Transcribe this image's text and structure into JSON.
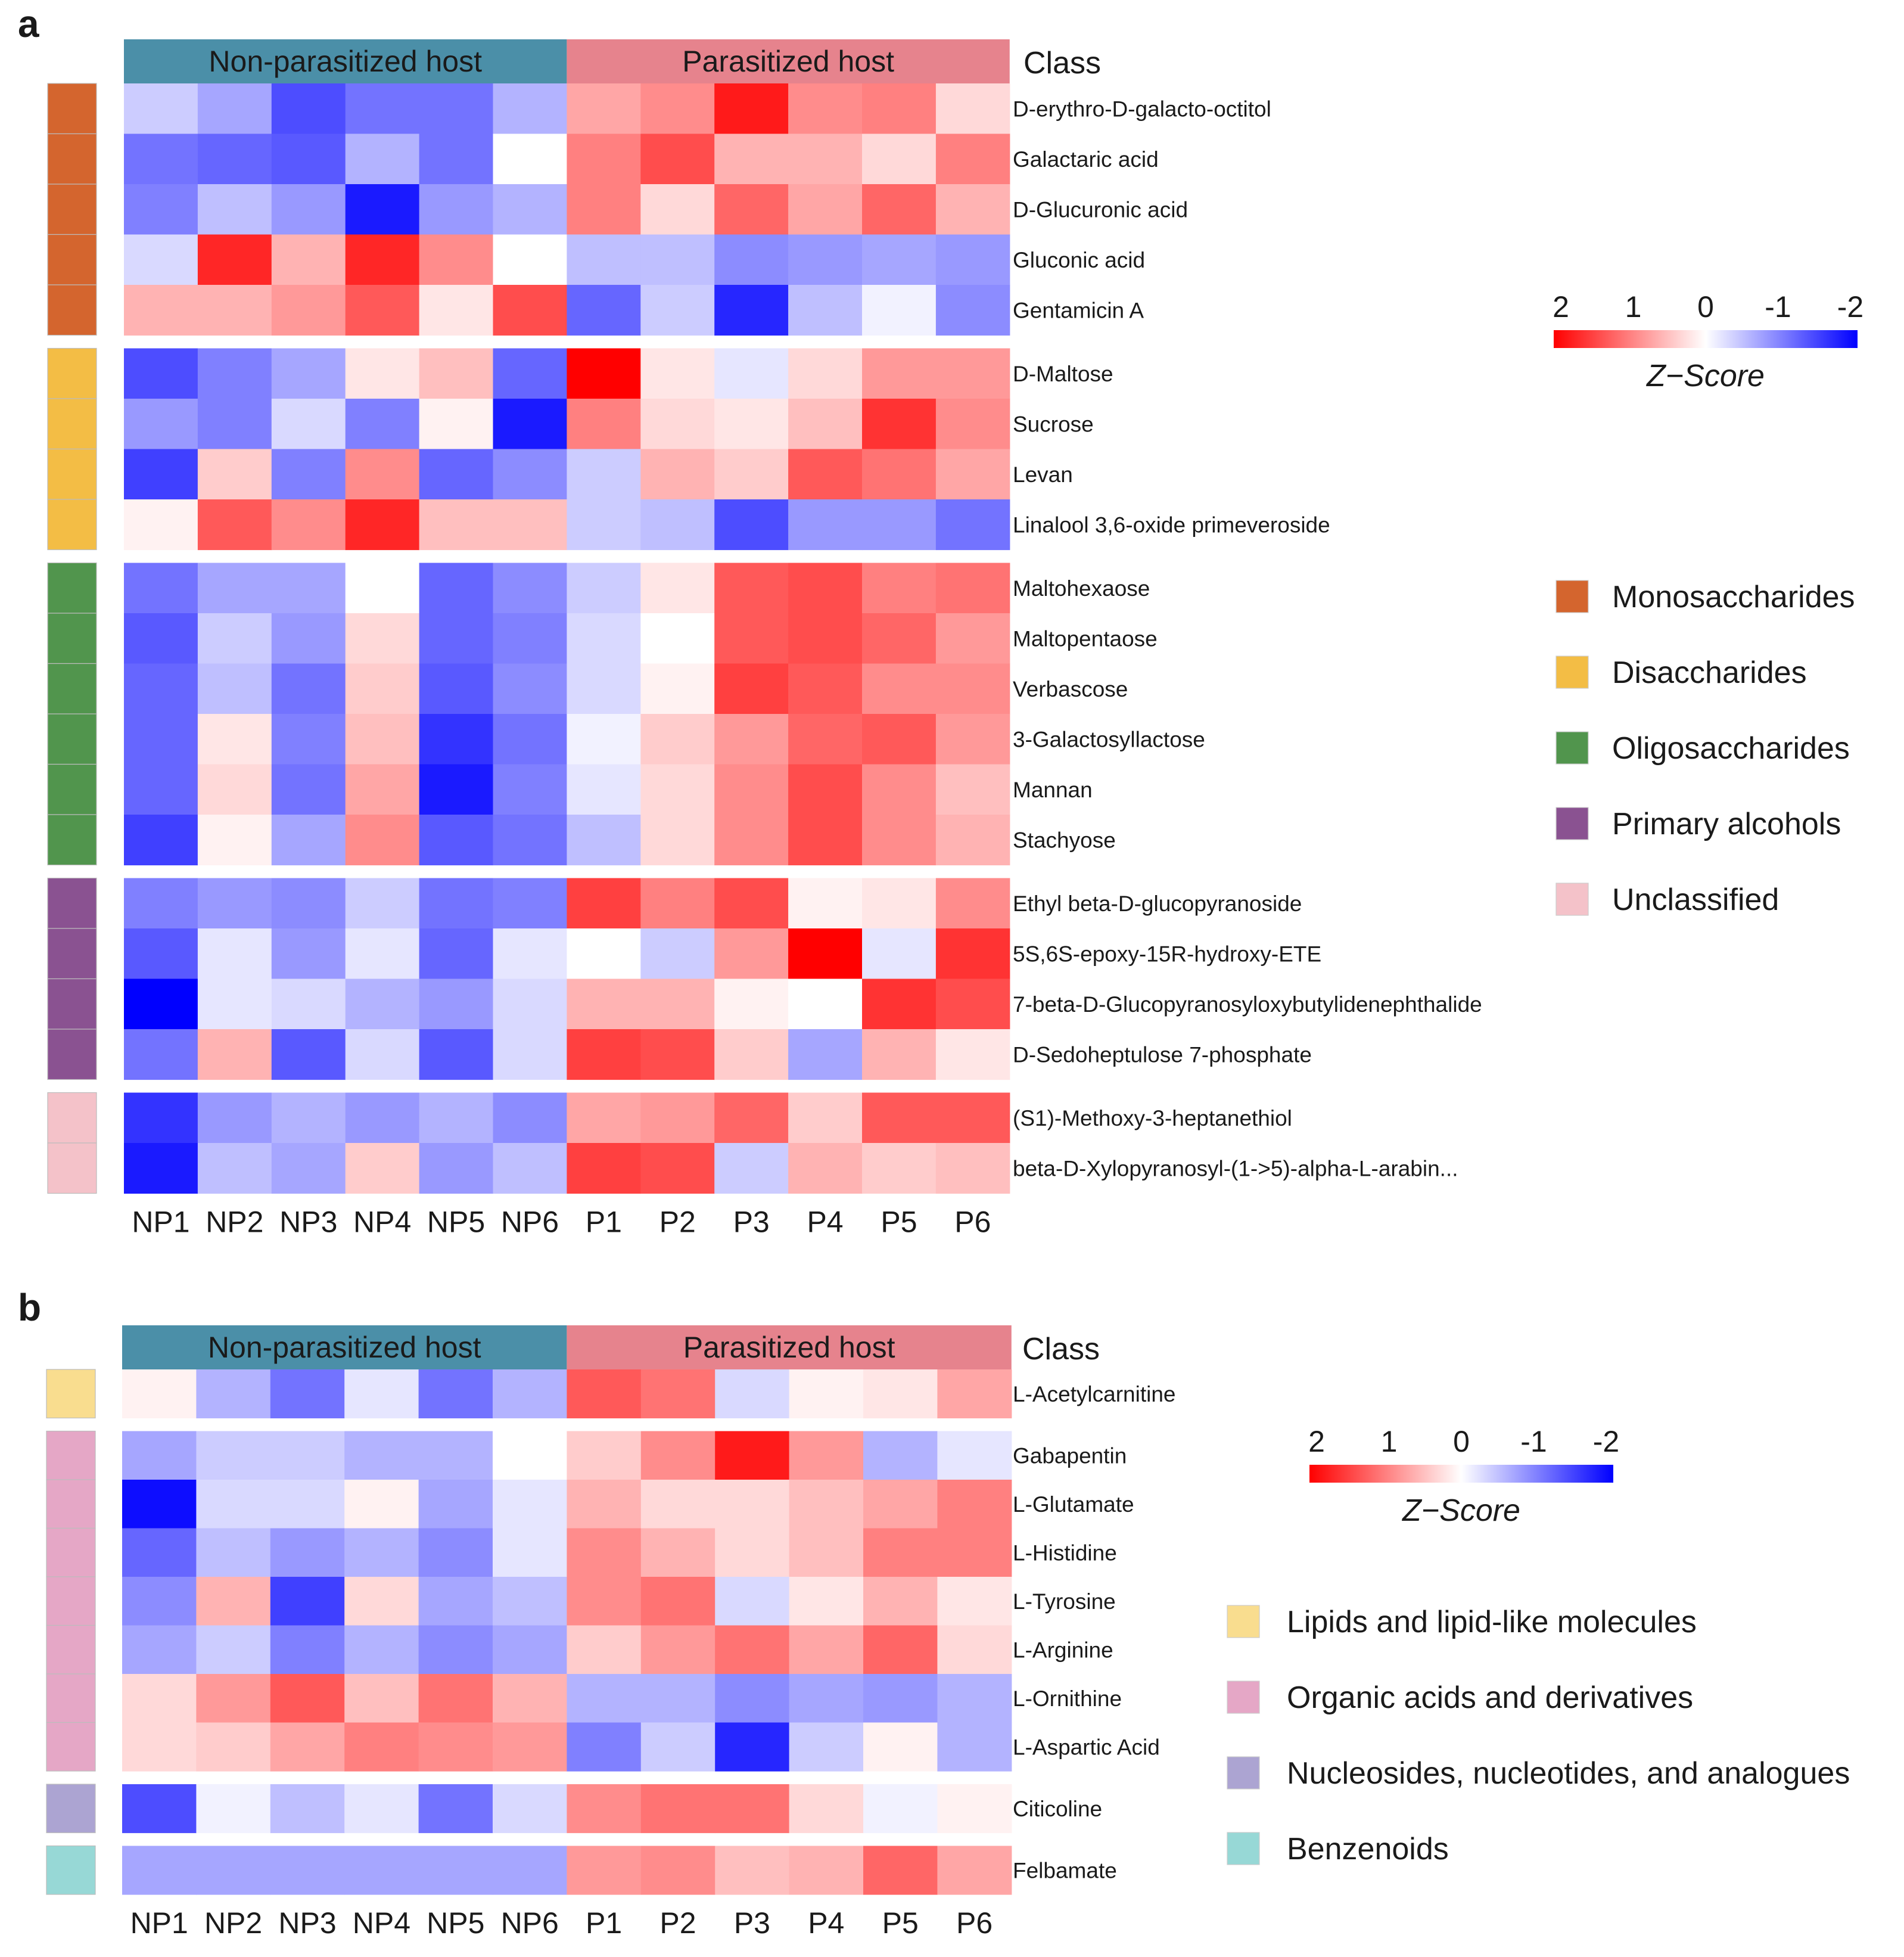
{
  "colors": {
    "high": "#ff0000",
    "mid": "#ffffff",
    "low": "#0000ff",
    "group_nonparasitized": "#4b8fa8",
    "group_parasitized": "#e6838d"
  },
  "chart_data": [
    {
      "type": "heatmap",
      "panel_label": "a",
      "group_labels": [
        "Non-parasitized host",
        "Parasitized host"
      ],
      "class_header": "Class",
      "columns": [
        "NP1",
        "NP2",
        "NP3",
        "NP4",
        "NP5",
        "NP6",
        "P1",
        "P2",
        "P3",
        "P4",
        "P5",
        "P6"
      ],
      "colorbar": {
        "ticks": [
          "2",
          "1",
          "0",
          "-1",
          "-2"
        ],
        "title": "Z−Score",
        "range": [
          2,
          -2
        ]
      },
      "classes": [
        {
          "name": "Monosaccharides",
          "color": "#d4652e"
        },
        {
          "name": "Disaccharides",
          "color": "#f3bd45"
        },
        {
          "name": "Oligosaccharides",
          "color": "#51954d"
        },
        {
          "name": "Primary alcohols",
          "color": "#8a5291"
        },
        {
          "name": "Unclassified",
          "color": "#f4c2c9"
        }
      ],
      "blocks": [
        {
          "class_index": 0,
          "rows": [
            {
              "label": "D-erythro-D-galacto-octitol",
              "values": [
                -0.4,
                -0.7,
                -1.4,
                -1.1,
                -1.1,
                -0.6,
                0.7,
                0.9,
                1.8,
                0.9,
                1.0,
                0.3
              ]
            },
            {
              "label": "Galactaric acid",
              "values": [
                -1.1,
                -1.2,
                -1.3,
                -0.6,
                -1.1,
                0.0,
                1.0,
                1.4,
                0.6,
                0.6,
                0.3,
                1.0
              ]
            },
            {
              "label": "D-Glucuronic acid",
              "values": [
                -1.0,
                -0.5,
                -0.8,
                -1.8,
                -0.8,
                -0.6,
                1.0,
                0.3,
                1.2,
                0.7,
                1.2,
                0.6
              ]
            },
            {
              "label": "Gluconic acid",
              "values": [
                -0.3,
                1.7,
                0.6,
                1.7,
                0.9,
                0.0,
                -0.5,
                -0.5,
                -0.9,
                -0.8,
                -0.7,
                -0.8
              ]
            },
            {
              "label": "Gentamicin A",
              "values": [
                0.6,
                0.6,
                0.8,
                1.3,
                0.2,
                1.4,
                -1.2,
                -0.4,
                -1.7,
                -0.5,
                -0.1,
                -0.9
              ]
            }
          ]
        },
        {
          "class_index": 1,
          "rows": [
            {
              "label": "D-Maltose",
              "values": [
                -1.4,
                -1.0,
                -0.7,
                0.2,
                0.5,
                -1.2,
                2.0,
                0.2,
                -0.2,
                0.3,
                0.8,
                0.8
              ]
            },
            {
              "label": "Sucrose",
              "values": [
                -0.8,
                -1.0,
                -0.3,
                -1.0,
                0.1,
                -1.8,
                1.0,
                0.3,
                0.2,
                0.5,
                1.6,
                0.9
              ]
            },
            {
              "label": "Levan",
              "values": [
                -1.5,
                0.4,
                -1.0,
                0.9,
                -1.2,
                -0.9,
                -0.4,
                0.6,
                0.4,
                1.3,
                1.1,
                0.7
              ]
            },
            {
              "label": "Linalool 3,6-oxide primeveroside",
              "values": [
                0.1,
                1.3,
                0.9,
                1.7,
                0.5,
                0.5,
                -0.4,
                -0.5,
                -1.4,
                -0.8,
                -0.8,
                -1.1
              ]
            }
          ]
        },
        {
          "class_index": 2,
          "rows": [
            {
              "label": "Maltohexaose",
              "values": [
                -1.1,
                -0.7,
                -0.7,
                0.0,
                -1.2,
                -0.9,
                -0.4,
                0.2,
                1.3,
                1.4,
                1.0,
                1.1
              ]
            },
            {
              "label": "Maltopentaose",
              "values": [
                -1.3,
                -0.4,
                -0.8,
                0.3,
                -1.2,
                -1.0,
                -0.3,
                0.0,
                1.3,
                1.4,
                1.2,
                0.8
              ]
            },
            {
              "label": "Verbascose",
              "values": [
                -1.2,
                -0.5,
                -1.1,
                0.4,
                -1.3,
                -0.9,
                -0.3,
                0.1,
                1.5,
                1.3,
                0.9,
                0.9
              ]
            },
            {
              "label": "3-Galactosyllactose",
              "values": [
                -1.2,
                0.2,
                -1.0,
                0.5,
                -1.6,
                -1.1,
                -0.1,
                0.4,
                0.8,
                1.2,
                1.3,
                0.8
              ]
            },
            {
              "label": "Mannan",
              "values": [
                -1.2,
                0.3,
                -1.1,
                0.7,
                -1.8,
                -1.0,
                -0.2,
                0.3,
                0.9,
                1.4,
                0.9,
                0.5
              ]
            },
            {
              "label": "Stachyose",
              "values": [
                -1.5,
                0.1,
                -0.7,
                0.9,
                -1.3,
                -1.1,
                -0.5,
                0.3,
                0.9,
                1.4,
                0.9,
                0.6
              ]
            }
          ]
        },
        {
          "class_index": 3,
          "rows": [
            {
              "label": "Ethyl beta-D-glucopyranoside",
              "values": [
                -1.0,
                -0.8,
                -0.9,
                -0.4,
                -1.1,
                -1.0,
                1.5,
                1.0,
                1.4,
                0.1,
                0.2,
                0.9
              ]
            },
            {
              "label": "5S,6S-epoxy-15R-hydroxy-ETE",
              "values": [
                -1.3,
                -0.2,
                -0.8,
                -0.2,
                -1.2,
                -0.2,
                0.0,
                -0.4,
                0.8,
                2.0,
                -0.2,
                1.6
              ]
            },
            {
              "label": "7-beta-D-Glucopyranosyloxybutylidenephthalide",
              "values": [
                -2.0,
                -0.2,
                -0.3,
                -0.6,
                -0.8,
                -0.3,
                0.6,
                0.6,
                0.1,
                0.0,
                1.6,
                1.4
              ]
            },
            {
              "label": "D-Sedoheptulose 7-phosphate",
              "values": [
                -1.1,
                0.6,
                -1.3,
                -0.3,
                -1.3,
                -0.3,
                1.5,
                1.4,
                0.4,
                -0.7,
                0.6,
                0.2
              ]
            }
          ]
        },
        {
          "class_index": 4,
          "rows": [
            {
              "label": "(S1)-Methoxy-3-heptanethiol",
              "values": [
                -1.6,
                -0.8,
                -0.6,
                -0.8,
                -0.6,
                -0.9,
                0.7,
                0.8,
                1.2,
                0.4,
                1.3,
                1.3
              ]
            },
            {
              "label": "beta-D-Xylopyranosyl-(1->5)-alpha-L-arabin...",
              "values": [
                -1.8,
                -0.5,
                -0.7,
                0.4,
                -0.8,
                -0.5,
                1.5,
                1.4,
                -0.4,
                0.6,
                0.4,
                0.5
              ]
            }
          ]
        }
      ]
    },
    {
      "type": "heatmap",
      "panel_label": "b",
      "group_labels": [
        "Non-parasitized host",
        "Parasitized host"
      ],
      "class_header": "Class",
      "columns": [
        "NP1",
        "NP2",
        "NP3",
        "NP4",
        "NP5",
        "NP6",
        "P1",
        "P2",
        "P3",
        "P4",
        "P5",
        "P6"
      ],
      "colorbar": {
        "ticks": [
          "2",
          "1",
          "0",
          "-1",
          "-2"
        ],
        "title": "Z−Score",
        "range": [
          2,
          -2
        ]
      },
      "classes": [
        {
          "name": "Lipids and lipid-like molecules",
          "color": "#f9dd8f"
        },
        {
          "name": "Organic acids and derivatives",
          "color": "#e5a7c6"
        },
        {
          "name": "Nucleosides, nucleotides, and analogues",
          "color": "#aca4d2"
        },
        {
          "name": "Benzenoids",
          "color": "#97d8d6"
        }
      ],
      "blocks": [
        {
          "class_index": 0,
          "rows": [
            {
              "label": "L-Acetylcarnitine",
              "values": [
                0.1,
                -0.6,
                -1.1,
                -0.2,
                -1.1,
                -0.6,
                1.3,
                1.1,
                -0.3,
                0.1,
                0.2,
                0.7
              ]
            }
          ]
        },
        {
          "class_index": 1,
          "rows": [
            {
              "label": "Gabapentin",
              "values": [
                -0.7,
                -0.4,
                -0.4,
                -0.6,
                -0.6,
                0.0,
                0.4,
                0.9,
                1.8,
                0.8,
                -0.6,
                -0.2
              ]
            },
            {
              "label": "L-Glutamate",
              "values": [
                -1.9,
                -0.3,
                -0.3,
                0.1,
                -0.7,
                -0.2,
                0.6,
                0.3,
                0.3,
                0.5,
                0.7,
                1.0
              ]
            },
            {
              "label": "L-Histidine",
              "values": [
                -1.2,
                -0.5,
                -0.8,
                -0.6,
                -0.9,
                -0.2,
                0.9,
                0.6,
                0.3,
                0.5,
                1.0,
                1.0
              ]
            },
            {
              "label": "L-Tyrosine",
              "values": [
                -0.9,
                0.6,
                -1.5,
                0.3,
                -0.7,
                -0.5,
                0.9,
                1.1,
                -0.3,
                0.2,
                0.6,
                0.2
              ]
            },
            {
              "label": "L-Arginine",
              "values": [
                -0.7,
                -0.4,
                -1.0,
                -0.6,
                -0.9,
                -0.7,
                0.4,
                0.8,
                1.1,
                0.7,
                1.2,
                0.3
              ]
            },
            {
              "label": "L-Ornithine",
              "values": [
                0.3,
                0.8,
                1.3,
                0.5,
                1.1,
                0.6,
                -0.6,
                -0.6,
                -0.9,
                -0.7,
                -0.8,
                -0.6
              ]
            },
            {
              "label": "L-Aspartic Acid",
              "values": [
                0.3,
                0.4,
                0.7,
                1.0,
                0.9,
                0.8,
                -1.0,
                -0.4,
                -1.7,
                -0.4,
                0.1,
                -0.6
              ]
            }
          ]
        },
        {
          "class_index": 2,
          "rows": [
            {
              "label": "Citicoline",
              "values": [
                -1.4,
                -0.1,
                -0.5,
                -0.2,
                -1.1,
                -0.3,
                0.9,
                1.1,
                1.1,
                0.3,
                -0.1,
                0.1
              ]
            }
          ]
        },
        {
          "class_index": 3,
          "rows": [
            {
              "label": "Felbamate",
              "values": [
                -0.7,
                -0.7,
                -0.7,
                -0.7,
                -0.7,
                -0.7,
                0.8,
                0.9,
                0.5,
                0.6,
                1.2,
                0.7
              ]
            }
          ]
        }
      ]
    }
  ]
}
